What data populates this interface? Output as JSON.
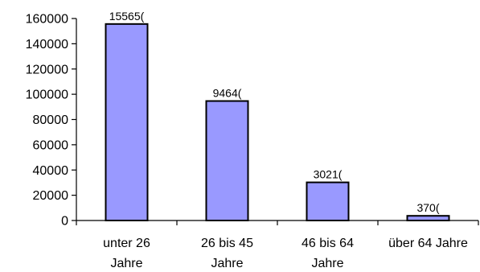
{
  "chart_data": {
    "type": "bar",
    "title": "",
    "xlabel": "",
    "ylabel": "",
    "categories": [
      [
        "unter 26",
        "Jahre"
      ],
      [
        "26 bis 45",
        "Jahre"
      ],
      [
        "46 bis 64",
        "Jahre"
      ],
      [
        "über 64 Jahre"
      ]
    ],
    "values": [
      155650,
      94640,
      30210,
      3700
    ],
    "data_labels": [
      "15565(",
      "9464(",
      "3021(",
      "370("
    ],
    "ylim": [
      0,
      160000
    ],
    "yticks": [
      0,
      20000,
      40000,
      60000,
      80000,
      100000,
      120000,
      140000,
      160000
    ],
    "grid": false,
    "legend": "none",
    "colors": {
      "bar_fill": "#9999ff",
      "bar_stroke": "#000000",
      "axis": "#000000",
      "background": "#ffffff"
    }
  }
}
